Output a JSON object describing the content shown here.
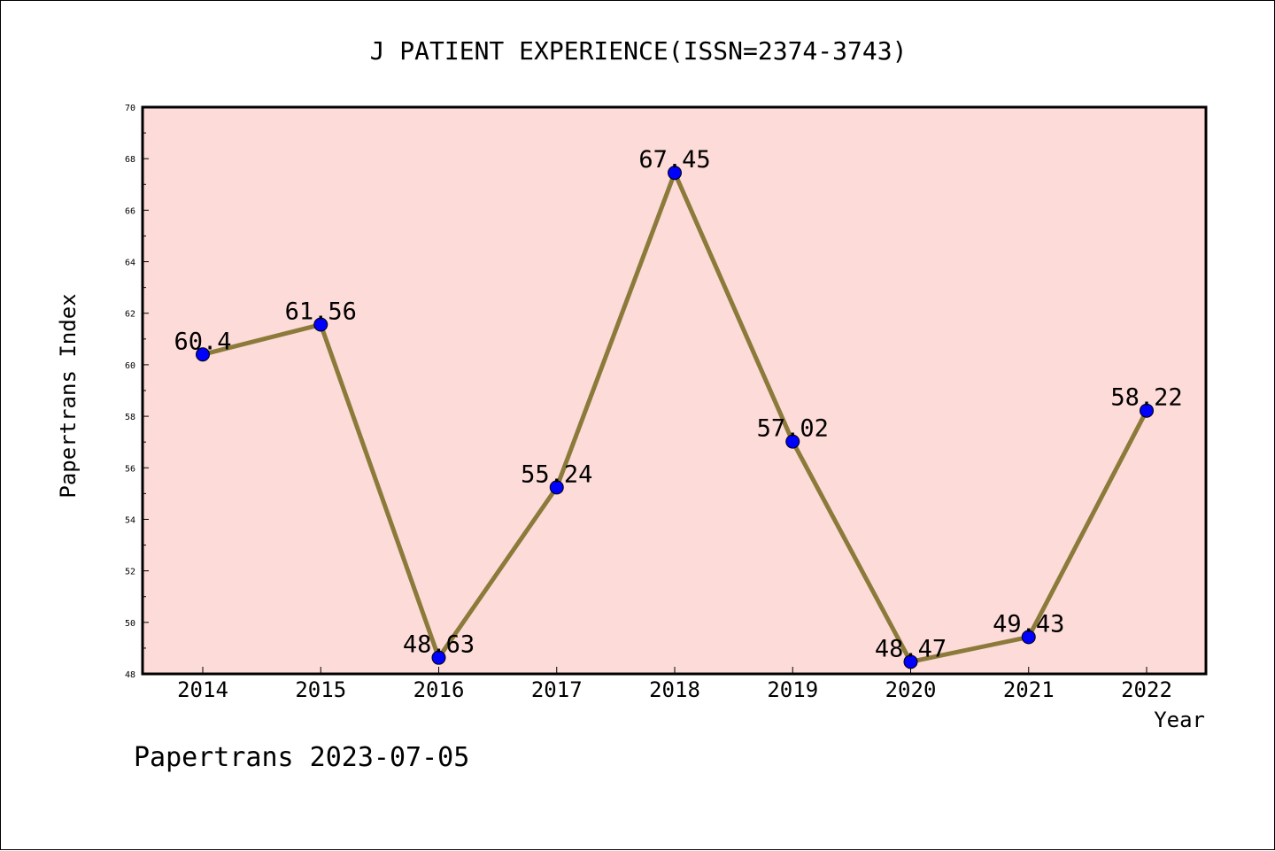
{
  "chart_data": {
    "type": "line",
    "title": "J PATIENT EXPERIENCE(ISSN=2374-3743)",
    "xlabel": "Year",
    "ylabel": "Papertrans Index",
    "categories": [
      "2014",
      "2015",
      "2016",
      "2017",
      "2018",
      "2019",
      "2020",
      "2021",
      "2022"
    ],
    "series": [
      {
        "values": [
          60.4,
          61.56,
          48.63,
          55.24,
          67.45,
          57.02,
          48.47,
          49.43,
          58.22
        ]
      }
    ],
    "data_labels": [
      "60.4",
      "61.56",
      "48.63",
      "55.24",
      "67.45",
      "57.02",
      "48.47",
      "49.43",
      "58.22"
    ],
    "ylim": [
      48,
      70
    ],
    "y_ticks": [
      "48",
      "50",
      "52",
      "54",
      "56",
      "58",
      "60",
      "62",
      "64",
      "66",
      "68",
      "70"
    ],
    "grid": false,
    "legend": "none",
    "colors": {
      "plot_background": "#fddbd8",
      "line": "#8b7a3a",
      "marker": "#0000ff",
      "axis": "#000000"
    }
  },
  "footer": "Papertrans 2023-07-05"
}
